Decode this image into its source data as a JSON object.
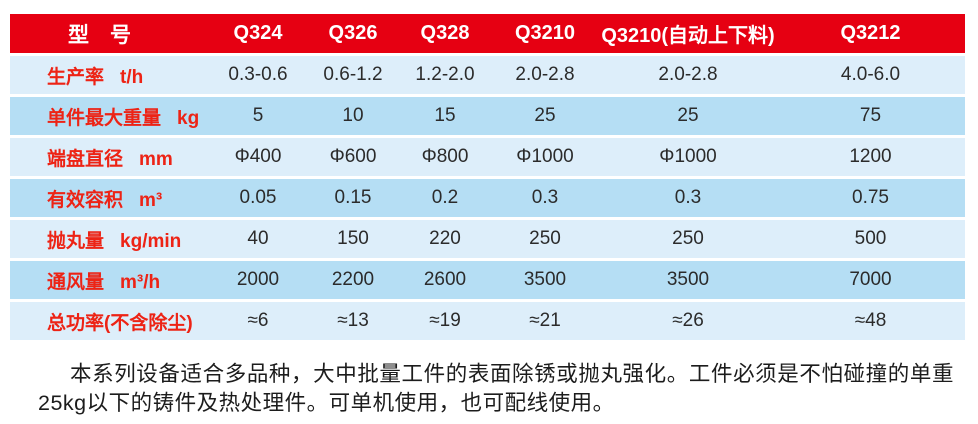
{
  "page": {
    "accent_red": "#e60012",
    "label_red": "#ed2315",
    "row_blue_light": "#ddeefa",
    "row_blue_medium": "#b5def4"
  },
  "table": {
    "corner_label": "型　号",
    "models": [
      "Q324",
      "Q326",
      "Q328",
      "Q3210",
      "Q3210(自动上下料)",
      "Q3212"
    ],
    "rows": [
      {
        "label": "生产率",
        "unit": "t/h",
        "values": [
          "0.3-0.6",
          "0.6-1.2",
          "1.2-2.0",
          "2.0-2.8",
          "2.0-2.8",
          "4.0-6.0"
        ]
      },
      {
        "label": "单件最大重量",
        "unit": "kg",
        "values": [
          "5",
          "10",
          "15",
          "25",
          "25",
          "75"
        ]
      },
      {
        "label": "端盘直径",
        "unit": "mm",
        "values": [
          "Φ400",
          "Φ600",
          "Φ800",
          "Φ1000",
          "Φ1000",
          "1200"
        ]
      },
      {
        "label": "有效容积",
        "unit": "m³",
        "values": [
          "0.05",
          "0.15",
          "0.2",
          "0.3",
          "0.3",
          "0.75"
        ]
      },
      {
        "label": "抛丸量",
        "unit": "kg/min",
        "values": [
          "40",
          "150",
          "220",
          "250",
          "250",
          "500"
        ]
      },
      {
        "label": "通风量",
        "unit": "m³/h",
        "values": [
          "2000",
          "2200",
          "2600",
          "3500",
          "3500",
          "7000"
        ]
      },
      {
        "label": "总功率(不含除尘)",
        "unit": "",
        "values": [
          "≈6",
          "≈13",
          "≈19",
          "≈21",
          "≈26",
          "≈48"
        ]
      }
    ]
  },
  "description": {
    "text": "本系列设备适合多品种，大中批量工件的表面除锈或抛丸强化。工件必须是不怕碰撞的单重25kg以下的铸件及热处理件。可单机使用，也可配线使用。"
  }
}
